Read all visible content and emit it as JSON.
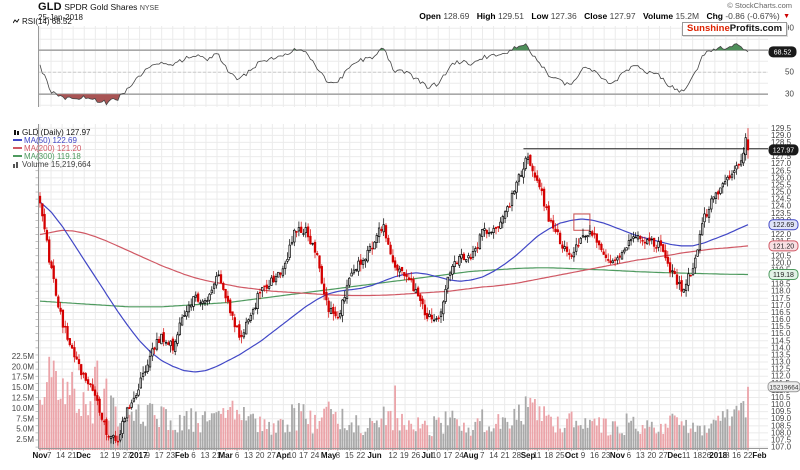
{
  "header": {
    "symbol": "GLD",
    "name": "SPDR Gold Shares",
    "exchange": "NYSE",
    "date": "25-Jan-2018",
    "credit": "© StockCharts.com",
    "quote_items": [
      {
        "label": "Open",
        "value": "128.69"
      },
      {
        "label": "High",
        "value": "129.51"
      },
      {
        "label": "Low",
        "value": "127.36"
      },
      {
        "label": "Close",
        "value": "127.97"
      },
      {
        "label": "Volume",
        "value": "15.2M"
      },
      {
        "label": "Chg",
        "value": "-0.86 (-0.67%)"
      }
    ],
    "chg_direction": "down",
    "logo": {
      "part1": "Sunshine",
      "part2": "Profits.com"
    }
  },
  "rsi": {
    "label": "RSI(14)",
    "value": "68.52",
    "last": 68.52
  },
  "legend": {
    "items": [
      {
        "text": "GLD (Daily) 127.97",
        "color_key": "text_dark"
      },
      {
        "text": "MA(50) 122.69",
        "color_key": "ma50"
      },
      {
        "text": "MA(200) 121.20",
        "color_key": "ma200"
      },
      {
        "text": "MA(300) 119.18",
        "color_key": "ma300"
      },
      {
        "text": "Volume 15,219,664",
        "color_key": "text"
      }
    ]
  },
  "colors": {
    "up": "#000000",
    "up_fill": "#ffffff",
    "down": "#d40000",
    "vol_up": "#a9a9a9",
    "vol_down": "#eba4a9",
    "ma50": "#4147c6",
    "ma200": "#d05864",
    "ma300": "#4e9a5f",
    "rsi_line": "#444444",
    "rsi_over_fill": "#4e8f5a",
    "rsi_under_fill": "#a85454",
    "grid": "#ebebeb",
    "band": "#a8a8a8",
    "mid_dash": "#cccccc",
    "axis": "#999999",
    "trend": "#222222",
    "annotation": "#cc4f4f",
    "text": "#444444",
    "text_dark": "#111111",
    "chg_down": "#cc0000",
    "logo_red": "#dd2200"
  },
  "chart_data": {
    "type": "candlestick",
    "title": "GLD SPDR Gold Shares NYSE - Daily with RSI(14), MA(50), MA(200), MA(300), Volume",
    "x_range": "Nov-2016 to Jan-2018",
    "days": 310,
    "ylim": [
      106.8,
      129.8
    ],
    "price_tick_min": 107.0,
    "price_tick_max": 129.5,
    "price_tick_step": 0.5,
    "volume_ticks_m": [
      2.5,
      5.0,
      7.5,
      10.0,
      12.5,
      15.0,
      17.5,
      20.0,
      22.5
    ],
    "rsi_axis": {
      "ticks": [
        90,
        50,
        30
      ],
      "overbought": 70,
      "oversold": 30,
      "mid": 50
    },
    "weekly_anchors": {
      "close": [
        124.3,
        119.5,
        115.8,
        113.5,
        111.9,
        110.6,
        108.1,
        107.6,
        109.8,
        111.4,
        113.7,
        114.9,
        114.0,
        116.3,
        117.6,
        117.2,
        119.2,
        117.0,
        114.8,
        116.0,
        118.3,
        118.7,
        119.3,
        122.2,
        122.4,
        120.6,
        116.8,
        116.3,
        119.1,
        120.2,
        121.0,
        122.8,
        119.9,
        119.3,
        117.9,
        116.2,
        116.0,
        119.3,
        120.4,
        120.2,
        122.2,
        122.5,
        123.2,
        125.4,
        127.4,
        125.8,
        123.1,
        121.6,
        120.3,
        122.0,
        121.9,
        120.4,
        120.2,
        121.3,
        121.8,
        121.5,
        121.2,
        119.5,
        118.0,
        119.6,
        123.1,
        124.8,
        125.8,
        126.9,
        127.97
      ],
      "rsi": [
        55,
        33,
        27,
        25,
        27,
        25,
        22,
        26,
        36,
        47,
        56,
        60,
        55,
        62,
        65,
        61,
        67,
        52,
        43,
        52,
        61,
        62,
        64,
        71,
        68,
        54,
        40,
        42,
        56,
        61,
        64,
        72,
        52,
        50,
        44,
        37,
        39,
        55,
        60,
        57,
        64,
        65,
        68,
        72,
        74,
        60,
        47,
        42,
        38,
        53,
        52,
        42,
        41,
        52,
        55,
        50,
        47,
        37,
        32,
        46,
        66,
        72,
        71,
        76,
        68.52
      ],
      "ma50": [
        124.3,
        123.6,
        122.6,
        121.4,
        120.2,
        119.0,
        117.8,
        116.6,
        115.5,
        114.5,
        113.7,
        113.1,
        112.7,
        112.4,
        112.3,
        112.4,
        112.7,
        113.1,
        113.5,
        114.0,
        114.5,
        115.1,
        115.7,
        116.3,
        116.9,
        117.4,
        117.8,
        118.0,
        118.1,
        118.2,
        118.4,
        118.7,
        119.0,
        119.2,
        119.3,
        119.2,
        119.0,
        118.8,
        118.7,
        118.8,
        119.0,
        119.4,
        119.9,
        120.5,
        121.2,
        121.9,
        122.4,
        122.8,
        123.0,
        123.1,
        123.0,
        122.8,
        122.5,
        122.2,
        121.9,
        121.7,
        121.5,
        121.3,
        121.2,
        121.2,
        121.4,
        121.7,
        122.0,
        122.35,
        122.69
      ],
      "ma200": [
        122.0,
        122.15,
        122.3,
        122.25,
        122.1,
        121.85,
        121.55,
        121.2,
        120.85,
        120.5,
        120.15,
        119.8,
        119.5,
        119.2,
        118.95,
        118.75,
        118.6,
        118.45,
        118.3,
        118.2,
        118.1,
        118.0,
        117.95,
        117.9,
        117.85,
        117.8,
        117.75,
        117.72,
        117.7,
        117.7,
        117.7,
        117.72,
        117.75,
        117.8,
        117.85,
        117.9,
        117.95,
        118.0,
        118.1,
        118.2,
        118.3,
        118.35,
        118.45,
        118.55,
        118.7,
        118.85,
        119.0,
        119.15,
        119.3,
        119.45,
        119.6,
        119.75,
        119.9,
        120.05,
        120.2,
        120.3,
        120.45,
        120.55,
        120.7,
        120.8,
        120.9,
        121.0,
        121.05,
        121.12,
        121.2
      ],
      "ma300": [
        117.3,
        117.25,
        117.2,
        117.15,
        117.1,
        117.05,
        117.0,
        116.95,
        116.9,
        116.9,
        116.9,
        116.9,
        116.95,
        117.0,
        117.05,
        117.1,
        117.15,
        117.2,
        117.3,
        117.4,
        117.5,
        117.6,
        117.7,
        117.8,
        117.9,
        118.0,
        118.1,
        118.2,
        118.3,
        118.4,
        118.5,
        118.6,
        118.7,
        118.8,
        118.9,
        119.0,
        119.1,
        119.2,
        119.3,
        119.4,
        119.45,
        119.5,
        119.55,
        119.6,
        119.63,
        119.65,
        119.65,
        119.63,
        119.6,
        119.57,
        119.53,
        119.5,
        119.46,
        119.42,
        119.38,
        119.35,
        119.32,
        119.3,
        119.28,
        119.26,
        119.24,
        119.22,
        119.2,
        119.19,
        119.18
      ],
      "volume_avg_m": [
        8,
        18,
        15,
        12,
        10,
        9,
        12,
        8,
        6,
        8,
        9,
        7,
        6,
        8,
        7,
        6,
        7,
        8,
        9,
        7,
        6,
        5,
        6,
        8,
        7,
        6,
        8,
        7,
        6,
        5,
        5,
        8,
        7,
        6,
        6,
        5,
        6,
        7,
        5,
        5,
        7,
        6,
        6,
        7,
        9,
        8,
        7,
        6,
        7,
        6,
        5,
        6,
        5,
        6,
        5,
        5,
        4,
        6,
        7,
        5,
        4,
        6,
        8,
        7,
        11
      ]
    },
    "volume_spikes": [
      [
        5,
        17.5
      ],
      [
        6,
        21.5
      ],
      [
        7,
        19.0
      ],
      [
        24,
        20.0
      ],
      [
        25,
        21.5
      ],
      [
        155,
        15.5
      ]
    ],
    "prev_close": 128.83,
    "last_candle": {
      "open": 128.69,
      "high": 129.51,
      "low": 127.36,
      "close": 127.97,
      "volume_m": 15.2
    },
    "trendline": {
      "price": 128.05,
      "day_start": 211
    },
    "annotation_box": {
      "day_start": 233,
      "day_end": 240,
      "price_top": 123.45,
      "price_bottom": 122.3
    },
    "axis_bubbles": {
      "price": "127.97",
      "ma50": "122.69",
      "ma200": "121.20",
      "ma300": "119.18",
      "volume": "15219664",
      "rsi": "68.52"
    },
    "date_ticks": [
      [
        "Nov",
        0,
        1
      ],
      [
        "7",
        4,
        0
      ],
      [
        "14",
        9,
        0
      ],
      [
        "21",
        14,
        0
      ],
      [
        "Dec",
        19,
        1
      ],
      [
        "12",
        28,
        0
      ],
      [
        "19",
        33,
        0
      ],
      [
        "27",
        38,
        0
      ],
      [
        "2017",
        43,
        1
      ],
      [
        "9",
        47,
        0
      ],
      [
        "17",
        52,
        0
      ],
      [
        "23",
        57,
        0
      ],
      [
        "Feb",
        62,
        1
      ],
      [
        "6",
        67,
        0
      ],
      [
        "13",
        72,
        0
      ],
      [
        "21",
        77,
        0
      ],
      [
        "Mar",
        81,
        1
      ],
      [
        "6",
        86,
        0
      ],
      [
        "13",
        91,
        0
      ],
      [
        "20",
        96,
        0
      ],
      [
        "27",
        101,
        0
      ],
      [
        "Apr",
        106,
        1
      ],
      [
        "10",
        110,
        0
      ],
      [
        "17",
        115,
        0
      ],
      [
        "24",
        120,
        0
      ],
      [
        "May",
        126,
        1
      ],
      [
        "8",
        130,
        0
      ],
      [
        "15",
        135,
        0
      ],
      [
        "22",
        140,
        0
      ],
      [
        "Jun",
        146,
        1
      ],
      [
        "12",
        154,
        0
      ],
      [
        "19",
        159,
        0
      ],
      [
        "26",
        164,
        0
      ],
      [
        "Jul",
        169,
        1
      ],
      [
        "10",
        173,
        0
      ],
      [
        "17",
        178,
        0
      ],
      [
        "24",
        183,
        0
      ],
      [
        "Aug",
        188,
        1
      ],
      [
        "7",
        193,
        0
      ],
      [
        "14",
        198,
        0
      ],
      [
        "21",
        203,
        0
      ],
      [
        "28",
        208,
        0
      ],
      [
        "Sep",
        213,
        1
      ],
      [
        "11",
        217,
        0
      ],
      [
        "18",
        222,
        0
      ],
      [
        "25",
        227,
        0
      ],
      [
        "Oct",
        232,
        1
      ],
      [
        "9",
        237,
        0
      ],
      [
        "16",
        242,
        0
      ],
      [
        "23",
        247,
        0
      ],
      [
        "Nov",
        252,
        1
      ],
      [
        "6",
        257,
        0
      ],
      [
        "13",
        262,
        0
      ],
      [
        "20",
        267,
        0
      ],
      [
        "27",
        272,
        0
      ],
      [
        "Dec",
        277,
        1
      ],
      [
        "11",
        282,
        0
      ],
      [
        "18",
        287,
        0
      ],
      [
        "26",
        291,
        0
      ],
      [
        "2018",
        296,
        1
      ],
      [
        "8",
        300,
        0
      ],
      [
        "16",
        304,
        0
      ],
      [
        "22",
        309,
        0
      ],
      [
        "Feb",
        314,
        1
      ]
    ]
  }
}
